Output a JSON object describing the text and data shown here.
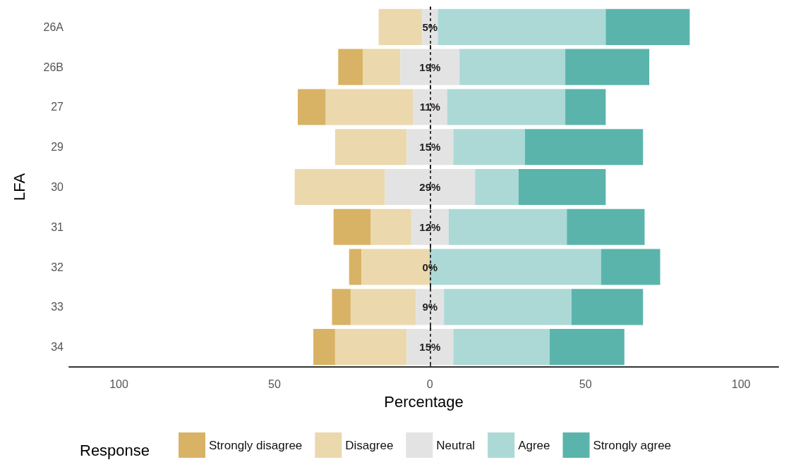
{
  "chart_data": {
    "type": "bar",
    "orientation": "horizontal",
    "xlabel": "Percentage",
    "ylabel": "LFA",
    "legend_title": "Response",
    "legend": "bottom",
    "grid": false,
    "categories": [
      "26A",
      "26B",
      "27",
      "29",
      "30",
      "31",
      "32",
      "33",
      "34"
    ],
    "xlim": [
      -116,
      112
    ],
    "xticks": [
      {
        "value": -100,
        "label": "100"
      },
      {
        "value": -50,
        "label": "50"
      },
      0,
      50,
      100
    ],
    "series": [
      {
        "name": "Strongly disagree",
        "color": "#d8b365",
        "values": [
          null,
          8,
          9,
          null,
          null,
          12,
          4,
          6,
          7
        ],
        "base": [
          null,
          -29.5,
          -42.5,
          null,
          null,
          -31,
          -26,
          -31.5,
          -37.5
        ]
      },
      {
        "name": "Disagree",
        "color": "#ebd8ad",
        "values": [
          14,
          12,
          28,
          23,
          29,
          13,
          22,
          21,
          23
        ],
        "base": [
          -16.5,
          -21.5,
          -33.5,
          -30.5,
          -43.5,
          -19,
          -22,
          -25.5,
          -30.5
        ]
      },
      {
        "name": "Neutral",
        "color": "#e3e3e3",
        "values": [
          5,
          19,
          11,
          15,
          29,
          12,
          0,
          9,
          15
        ],
        "base": [
          -2.5,
          -9.5,
          -5.5,
          -7.5,
          -14.5,
          -6,
          null,
          -4.5,
          -7.5
        ],
        "value_labels": [
          "5%",
          "19%",
          "11%",
          "15%",
          "29%",
          "12%",
          "0%",
          "9%",
          "15%"
        ]
      },
      {
        "name": "Agree",
        "color": "#acd9d5",
        "values": [
          54,
          34,
          38,
          23,
          14,
          38,
          55,
          41,
          31
        ],
        "base": [
          2.5,
          9.5,
          5.5,
          7.5,
          14.5,
          6,
          0,
          4.5,
          7.5
        ]
      },
      {
        "name": "Strongly agree",
        "color": "#5ab4ac",
        "values": [
          27,
          27,
          13,
          38,
          28,
          25,
          19,
          23,
          24
        ],
        "base": [
          56.5,
          43.5,
          43.5,
          30.5,
          28.5,
          44,
          55,
          45.5,
          38.5
        ]
      }
    ],
    "ref_lines": [
      {
        "axis": "x",
        "value": 0,
        "color": "#000000",
        "line_style": "dashed"
      }
    ]
  }
}
